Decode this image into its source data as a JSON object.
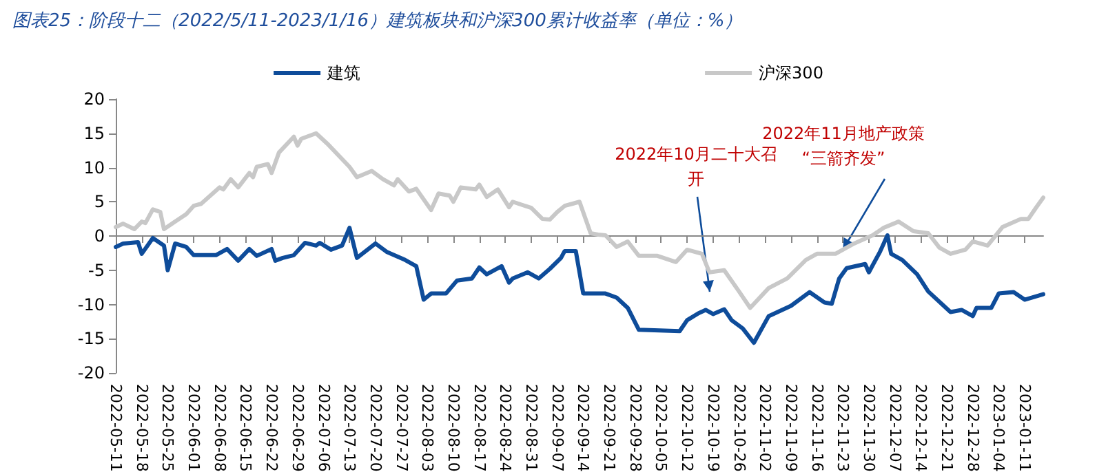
{
  "chart_data": {
    "type": "line",
    "title": "图表25：阶段十二（2022/5/11-2023/1/16）建筑板块和沪深300累计收益率（单位：%）",
    "xlim": [
      "2022-05-11",
      "2023-01-16"
    ],
    "xticks": [
      "2022-05-11",
      "2022-05-18",
      "2022-05-25",
      "2022-06-01",
      "2022-06-08",
      "2022-06-15",
      "2022-06-22",
      "2022-06-29",
      "2022-07-06",
      "2022-07-13",
      "2022-07-20",
      "2022-07-27",
      "2022-08-03",
      "2022-08-10",
      "2022-08-17",
      "2022-08-24",
      "2022-08-31",
      "2022-09-07",
      "2022-09-14",
      "2022-09-21",
      "2022-09-28",
      "2022-10-05",
      "2022-10-12",
      "2022-10-19",
      "2022-10-26",
      "2022-11-02",
      "2022-11-09",
      "2022-11-16",
      "2022-11-23",
      "2022-11-30",
      "2022-12-07",
      "2022-12-14",
      "2022-12-21",
      "2022-12-28",
      "2023-01-04",
      "2023-01-11"
    ],
    "ylim": [
      -20,
      20
    ],
    "yticks": [
      -20,
      -15,
      -10,
      -5,
      0,
      5,
      10,
      15,
      20
    ],
    "legend": "top",
    "marker": "none",
    "line_style": "solid",
    "series": [
      {
        "name": "建筑",
        "color": "#0e4c9a",
        "x": [
          "2022-05-11",
          "2022-05-13",
          "2022-05-17",
          "2022-05-18",
          "2022-05-21",
          "2022-05-24",
          "2022-05-25",
          "2022-05-27",
          "2022-05-30",
          "2022-06-01",
          "2022-06-07",
          "2022-06-10",
          "2022-06-13",
          "2022-06-16",
          "2022-06-18",
          "2022-06-22",
          "2022-06-23",
          "2022-06-25",
          "2022-06-28",
          "2022-07-01",
          "2022-07-04",
          "2022-07-05",
          "2022-07-08",
          "2022-07-11",
          "2022-07-13",
          "2022-07-15",
          "2022-07-20",
          "2022-07-23",
          "2022-07-28",
          "2022-07-31",
          "2022-08-02",
          "2022-08-04",
          "2022-08-08",
          "2022-08-11",
          "2022-08-15",
          "2022-08-17",
          "2022-08-19",
          "2022-08-23",
          "2022-08-25",
          "2022-08-26",
          "2022-08-30",
          "2022-09-02",
          "2022-09-05",
          "2022-09-08",
          "2022-09-09",
          "2022-09-12",
          "2022-09-14",
          "2022-09-20",
          "2022-09-23",
          "2022-09-26",
          "2022-09-29",
          "2022-10-10",
          "2022-10-12",
          "2022-10-15",
          "2022-10-17",
          "2022-10-19",
          "2022-10-22",
          "2022-10-24",
          "2022-10-27",
          "2022-10-30",
          "2022-11-03",
          "2022-11-09",
          "2022-11-14",
          "2022-11-18",
          "2022-11-20",
          "2022-11-22",
          "2022-11-24",
          "2022-11-29",
          "2022-11-30",
          "2022-12-03",
          "2022-12-05",
          "2022-12-06",
          "2022-12-09",
          "2022-12-13",
          "2022-12-16",
          "2022-12-22",
          "2022-12-25",
          "2022-12-28",
          "2022-12-29",
          "2023-01-02",
          "2023-01-04",
          "2023-01-08",
          "2023-01-11",
          "2023-01-16"
        ],
        "values": [
          -1.6,
          -1.1,
          -0.9,
          -2.6,
          -0.3,
          -1.4,
          -5.0,
          -1.1,
          -1.6,
          -2.8,
          -2.8,
          -1.9,
          -3.6,
          -1.9,
          -2.9,
          -1.9,
          -3.6,
          -3.2,
          -2.8,
          -1.0,
          -1.4,
          -1.0,
          -2.0,
          -1.4,
          1.2,
          -3.2,
          -1.1,
          -2.3,
          -3.5,
          -4.4,
          -9.3,
          -8.4,
          -8.4,
          -6.5,
          -6.2,
          -4.6,
          -5.6,
          -4.4,
          -6.8,
          -6.2,
          -5.3,
          -6.2,
          -4.8,
          -3.2,
          -2.2,
          -2.2,
          -8.4,
          -8.4,
          -9.0,
          -10.5,
          -13.7,
          -13.9,
          -12.3,
          -11.3,
          -10.8,
          -11.4,
          -10.7,
          -12.3,
          -13.5,
          -15.6,
          -11.7,
          -10.2,
          -8.2,
          -9.7,
          -9.9,
          -6.2,
          -4.7,
          -4.1,
          -5.3,
          -2.3,
          0.1,
          -2.6,
          -3.5,
          -5.6,
          -8.1,
          -11.1,
          -10.8,
          -11.7,
          -10.5,
          -10.5,
          -8.4,
          -8.2,
          -9.3,
          -8.5
        ]
      },
      {
        "name": "沪深300",
        "color": "#c8c8c8",
        "x": [
          "2022-05-11",
          "2022-05-13",
          "2022-05-16",
          "2022-05-18",
          "2022-05-19",
          "2022-05-21",
          "2022-05-23",
          "2022-05-24",
          "2022-05-27",
          "2022-05-30",
          "2022-06-01",
          "2022-06-03",
          "2022-06-08",
          "2022-06-09",
          "2022-06-11",
          "2022-06-13",
          "2022-06-16",
          "2022-06-17",
          "2022-06-18",
          "2022-06-21",
          "2022-06-22",
          "2022-06-24",
          "2022-06-28",
          "2022-06-29",
          "2022-06-30",
          "2022-07-04",
          "2022-07-07",
          "2022-07-13",
          "2022-07-15",
          "2022-07-19",
          "2022-07-22",
          "2022-07-25",
          "2022-07-26",
          "2022-07-29",
          "2022-07-31",
          "2022-08-04",
          "2022-08-06",
          "2022-08-09",
          "2022-08-10",
          "2022-08-12",
          "2022-08-16",
          "2022-08-17",
          "2022-08-19",
          "2022-08-22",
          "2022-08-25",
          "2022-08-26",
          "2022-08-31",
          "2022-09-03",
          "2022-09-05",
          "2022-09-07",
          "2022-09-09",
          "2022-09-11",
          "2022-09-13",
          "2022-09-16",
          "2022-09-18",
          "2022-09-20",
          "2022-09-23",
          "2022-09-26",
          "2022-09-29",
          "2022-10-04",
          "2022-10-09",
          "2022-10-12",
          "2022-10-16",
          "2022-10-18",
          "2022-10-22",
          "2022-10-26",
          "2022-10-29",
          "2022-11-03",
          "2022-11-08",
          "2022-11-13",
          "2022-11-16",
          "2022-11-21",
          "2022-11-26",
          "2022-12-01",
          "2022-12-04",
          "2022-12-08",
          "2022-12-12",
          "2022-12-16",
          "2022-12-19",
          "2022-12-22",
          "2022-12-26",
          "2022-12-28",
          "2023-01-01",
          "2023-01-05",
          "2023-01-10",
          "2023-01-12",
          "2023-01-14",
          "2023-01-16"
        ],
        "values": [
          1.3,
          1.8,
          1.0,
          2.1,
          1.9,
          3.9,
          3.5,
          1.0,
          2.1,
          3.2,
          4.4,
          4.7,
          7.1,
          6.8,
          8.3,
          7.1,
          9.2,
          8.6,
          10.1,
          10.5,
          9.2,
          12.2,
          14.5,
          13.2,
          14.2,
          15.0,
          13.5,
          10.1,
          8.6,
          9.5,
          8.3,
          7.4,
          8.3,
          6.5,
          6.9,
          3.8,
          6.2,
          5.9,
          5.0,
          7.1,
          6.8,
          7.5,
          5.7,
          6.8,
          4.2,
          5.0,
          4.1,
          2.5,
          2.4,
          3.5,
          4.4,
          4.7,
          5.0,
          0.4,
          0.2,
          0.1,
          -1.6,
          -0.8,
          -2.9,
          -2.9,
          -3.8,
          -2.0,
          -2.6,
          -5.3,
          -5.0,
          -8.1,
          -10.5,
          -7.6,
          -6.2,
          -3.5,
          -2.6,
          -2.6,
          -1.1,
          0.1,
          1.2,
          2.1,
          0.7,
          0.4,
          -1.7,
          -2.6,
          -2.0,
          -0.8,
          -1.4,
          1.3,
          2.5,
          2.5,
          4.1,
          5.6
        ]
      }
    ],
    "annotations": [
      "2022年10月二十大召开",
      {
        "text": "2022年11月地产政策“三箭齐发”",
        "x": "2022-11-23",
        "y": -2.0
      }
    ]
  }
}
